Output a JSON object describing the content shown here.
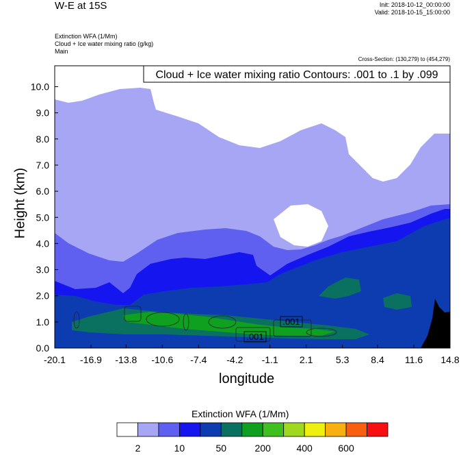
{
  "header": {
    "title": "W-E at 15S",
    "init": "Init: 2018-10-12_00:00:00",
    "valid": "Valid: 2018-10-15_15:00:00",
    "meta_line1": "Extinction WFA   (1/Mm)",
    "meta_line2": "Cloud + Ice water mixing ratio   (g/kg)",
    "meta_line3": "Main",
    "cross_section": "Cross-Section: (130,279) to (454,279)"
  },
  "chart_data": {
    "type": "heatmap",
    "title": "W-E at 15S",
    "xlabel": "longitude",
    "ylabel": "Height (km)",
    "xlim": [
      -20.1,
      14.8
    ],
    "ylim": [
      0.0,
      10.8
    ],
    "x_ticks": [
      "-20.1",
      "-16.9",
      "-13.8",
      "-10.6",
      "-7.4",
      "-4.2",
      "-1.1",
      "2.1",
      "5.3",
      "8.4",
      "11.6",
      "14.8"
    ],
    "y_ticks": [
      "0.0",
      "1.0",
      "2.0",
      "3.0",
      "4.0",
      "5.0",
      "6.0",
      "7.0",
      "8.0",
      "9.0",
      "10.0"
    ],
    "contour_annotation": "Cloud + Ice water mixing ratio Contours: .001 to .1 by .099",
    "contour_labels": [
      ".001",
      ".001"
    ],
    "colorbar": {
      "title": "Extinction WFA  (1/Mm)",
      "colors": [
        "#ffffff",
        "#a6a6f5",
        "#6060f0",
        "#1515f0",
        "#0c3cb0",
        "#0a7060",
        "#10a020",
        "#40c020",
        "#a0d820",
        "#f0f010",
        "#f8b010",
        "#f86010",
        "#f81010"
      ],
      "tick_labels": [
        "2",
        "10",
        "50",
        "200",
        "400",
        "600"
      ]
    },
    "grid": false
  }
}
